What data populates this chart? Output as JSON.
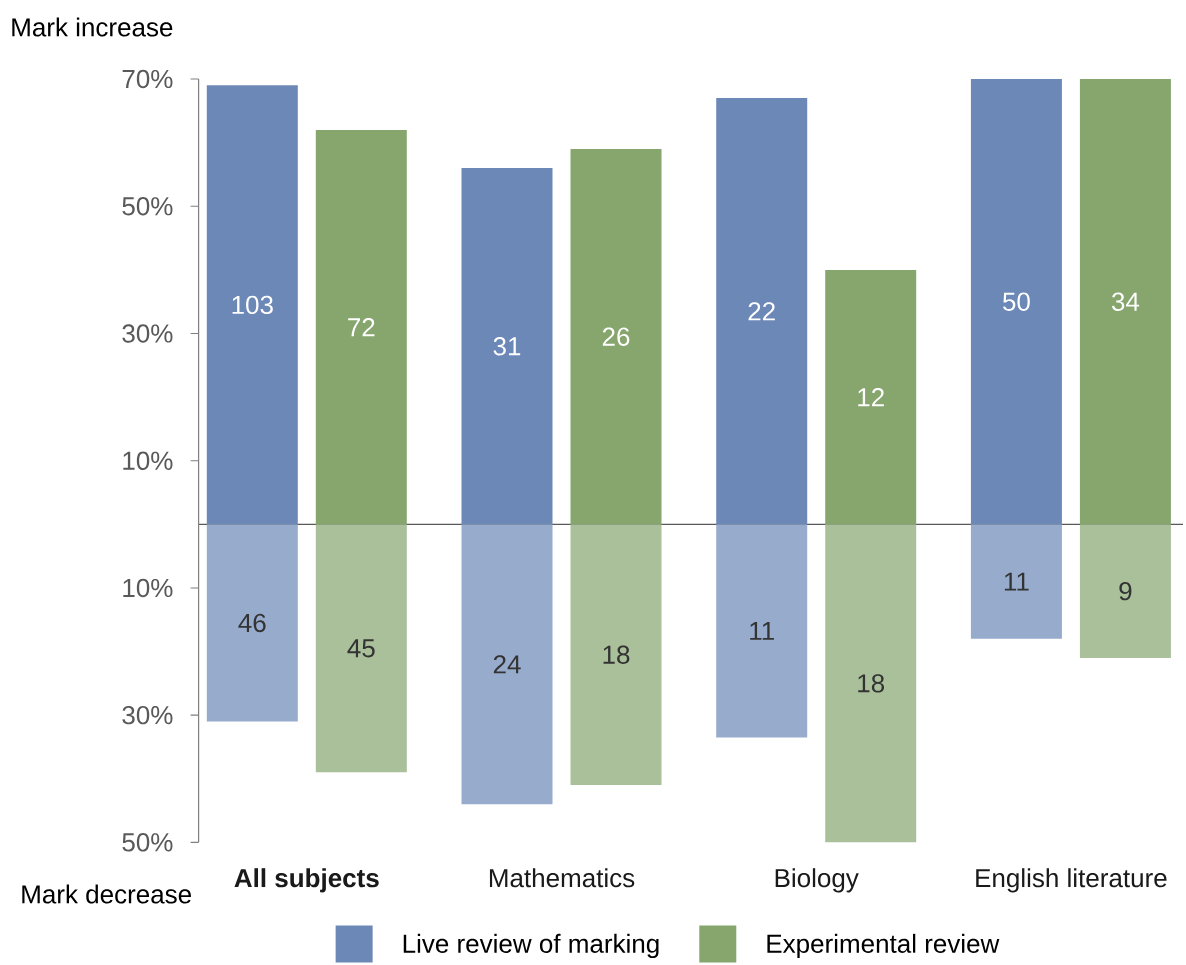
{
  "chart_data": [
    {
      "type": "bar",
      "ylabel": "Mark increase",
      "categories": [
        null,
        null,
        null,
        null
      ],
      "series": [
        {
          "name": "Live review of marking",
          "color": "#6c88b7",
          "values": [
            69,
            56,
            67,
            70
          ]
        },
        {
          "name": "Experimental review",
          "color": "#86a66e",
          "values": [
            62,
            59,
            40,
            70
          ]
        }
      ],
      "annotations": [
        "103",
        "72",
        "31",
        "26",
        "22",
        "12",
        "50",
        "34"
      ],
      "ylim": [
        0,
        70
      ],
      "yticks": [
        {
          "value": 70,
          "label": "70%"
        },
        {
          "value": 50,
          "label": "50%"
        },
        {
          "value": 30,
          "label": "30%"
        },
        {
          "value": 10,
          "label": "10%"
        }
      ],
      "tick_labels": "y",
      "legend": "bottom"
    },
    {
      "type": "bar",
      "ylabel": "Mark decrease",
      "categories": [
        "**All subjects**",
        "Mathematics",
        "Biology",
        "English literature"
      ],
      "series": [
        {
          "color": "#97abcc",
          "values": [
            31,
            44,
            33.5,
            18
          ]
        },
        {
          "color": "#aac09a",
          "values": [
            39,
            41,
            50,
            21
          ]
        }
      ],
      "annotations": [
        "46",
        "45",
        "24",
        "18",
        "11",
        "18",
        "11",
        "9"
      ],
      "ylim": [
        50,
        0
      ],
      "yticks": [
        {
          "value": 10,
          "label": "10%"
        },
        {
          "value": 30,
          "label": "30%"
        },
        {
          "value": 50,
          "label": "50%"
        }
      ]
    }
  ]
}
